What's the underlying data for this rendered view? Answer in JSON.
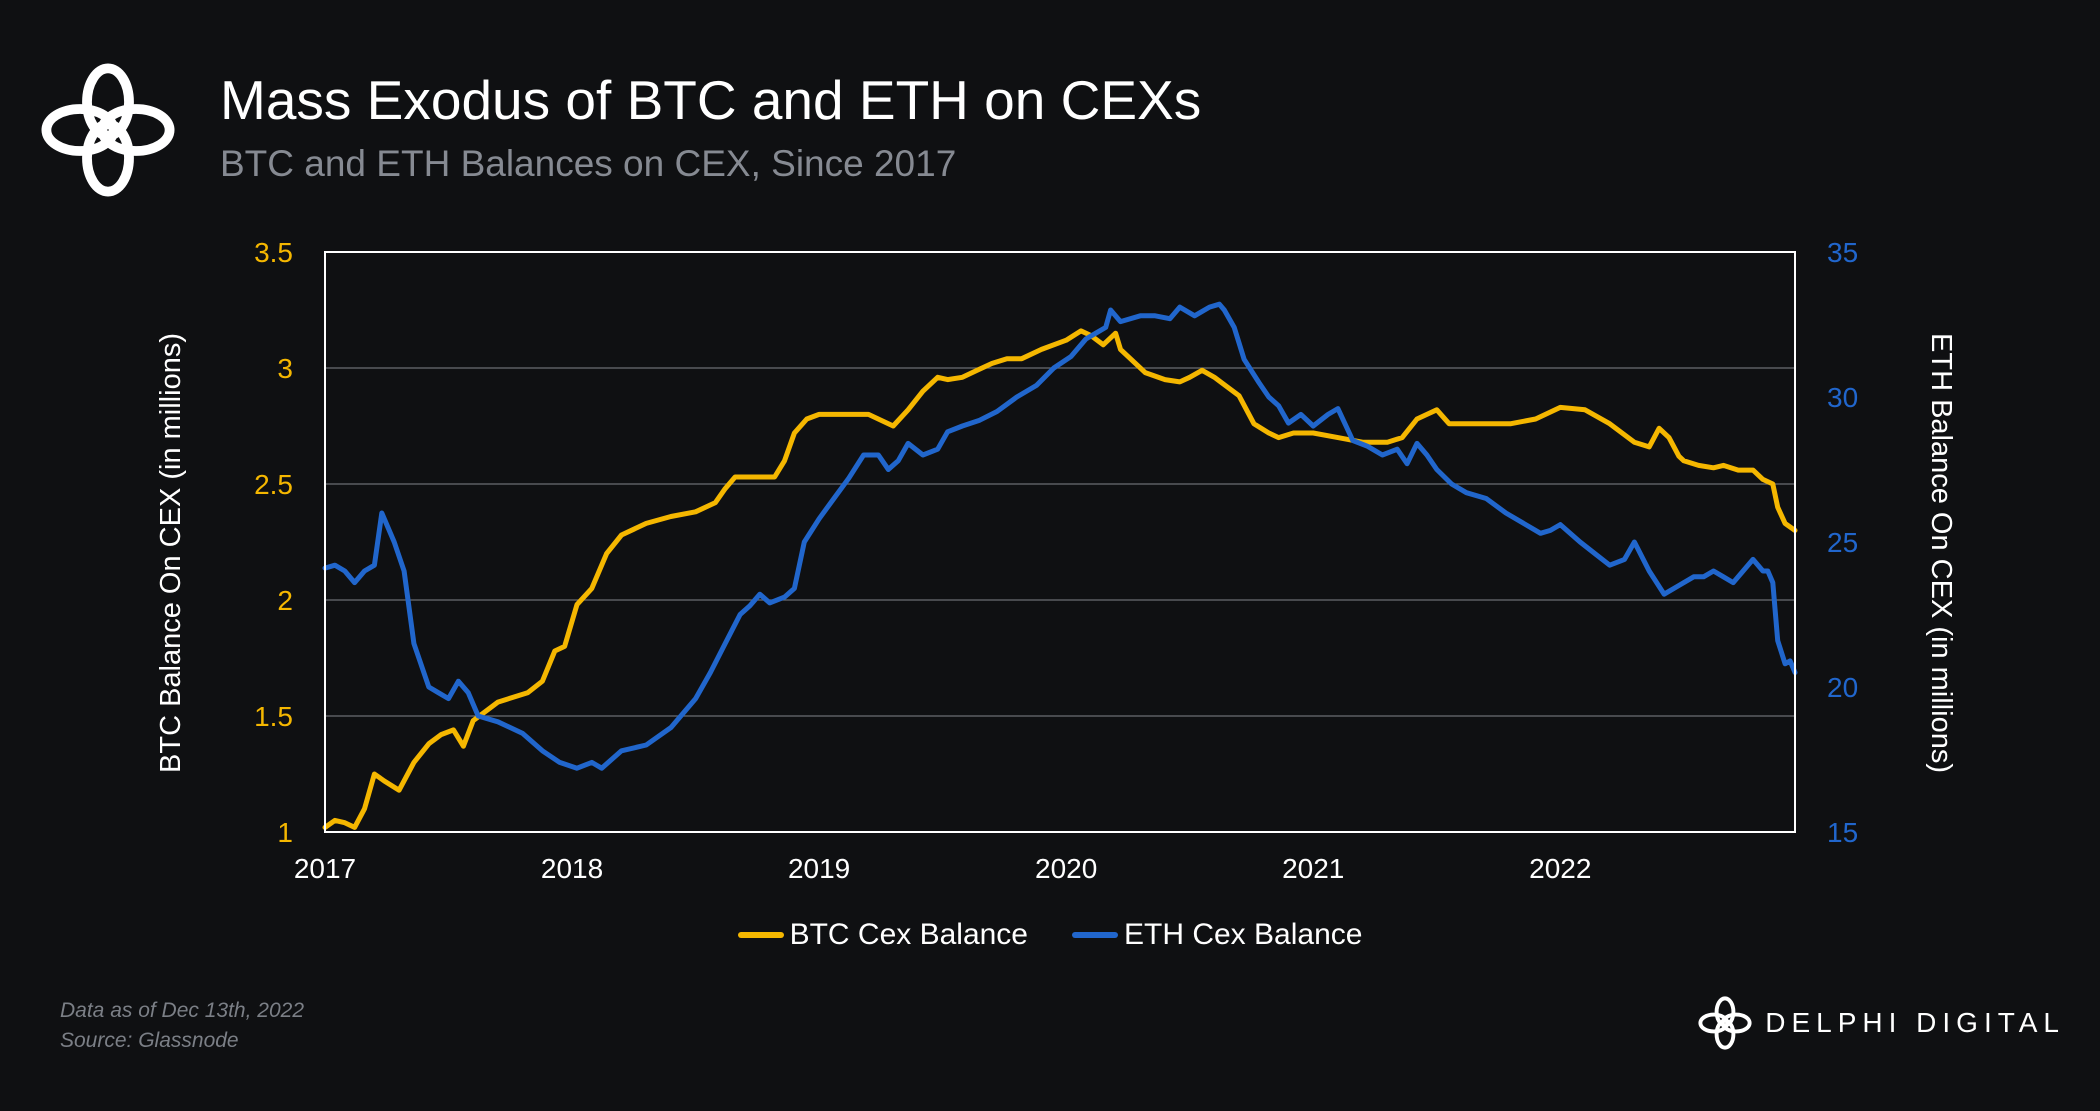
{
  "header": {
    "title": "Mass Exodus of BTC and ETH on CEXs",
    "subtitle": "BTC and ETH Balances on CEX, Since 2017"
  },
  "footer": {
    "data_note": "Data as of Dec 13th, 2022",
    "source": "Source: Glassnode",
    "brand": "DELPHI DIGITAL"
  },
  "colors": {
    "background": "#0f1012",
    "btc": "#f5b700",
    "eth": "#2166cc",
    "grid": "#6a6d72",
    "frame": "#ffffff"
  },
  "icons": {
    "header_logo": "delphi-knot-logo-icon",
    "brand_logo": "delphi-knot-logo-icon"
  },
  "chart_data": {
    "type": "line",
    "title": "Mass Exodus of BTC and ETH on CEXs",
    "subtitle": "BTC and ETH Balances on CEX, Since 2017",
    "xlabel": "",
    "ylabel": "BTC Balance On CEX (in millions)",
    "y2label": "ETH Balance On CEX (in millions)",
    "xlim": [
      2017.0,
      2022.95
    ],
    "ylim": [
      1,
      3.5
    ],
    "y2lim": [
      15,
      35
    ],
    "x_ticks": [
      2017,
      2018,
      2019,
      2020,
      2021,
      2022
    ],
    "x_tick_labels": [
      "2017",
      "2018",
      "2019",
      "2020",
      "2021",
      "2022"
    ],
    "y_ticks": [
      1,
      1.5,
      2,
      2.5,
      3,
      3.5
    ],
    "y_tick_labels": [
      "1",
      "1.5",
      "2",
      "2.5",
      "3",
      "3.5"
    ],
    "y2_ticks": [
      15,
      20,
      25,
      30,
      35
    ],
    "y2_tick_labels": [
      "15",
      "20",
      "25",
      "30",
      "35"
    ],
    "grid": "horizontal",
    "legend_position": "bottom-center",
    "series": [
      {
        "name": "BTC Cex Balance",
        "axis": "left",
        "color": "#f5b700",
        "x": [
          2017.0,
          2017.04,
          2017.08,
          2017.12,
          2017.16,
          2017.2,
          2017.24,
          2017.3,
          2017.36,
          2017.42,
          2017.47,
          2017.52,
          2017.56,
          2017.6,
          2017.65,
          2017.7,
          2017.76,
          2017.82,
          2017.88,
          2017.93,
          2017.97,
          2018.02,
          2018.08,
          2018.14,
          2018.2,
          2018.3,
          2018.4,
          2018.5,
          2018.58,
          2018.62,
          2018.66,
          2018.7,
          2018.76,
          2018.82,
          2018.86,
          2018.9,
          2018.95,
          2019.0,
          2019.1,
          2019.2,
          2019.3,
          2019.36,
          2019.42,
          2019.48,
          2019.52,
          2019.58,
          2019.64,
          2019.7,
          2019.76,
          2019.82,
          2019.9,
          2020.0,
          2020.06,
          2020.1,
          2020.15,
          2020.2,
          2020.22,
          2020.26,
          2020.32,
          2020.4,
          2020.46,
          2020.5,
          2020.55,
          2020.6,
          2020.7,
          2020.76,
          2020.82,
          2020.86,
          2020.92,
          2021.0,
          2021.1,
          2021.2,
          2021.3,
          2021.36,
          2021.42,
          2021.46,
          2021.5,
          2021.55,
          2021.6,
          2021.7,
          2021.8,
          2021.9,
          2022.0,
          2022.1,
          2022.2,
          2022.3,
          2022.36,
          2022.4,
          2022.44,
          2022.48,
          2022.5,
          2022.56,
          2022.62,
          2022.66,
          2022.72,
          2022.78,
          2022.82,
          2022.86,
          2022.88,
          2022.91,
          2022.95
        ],
        "values": [
          1.02,
          1.05,
          1.04,
          1.02,
          1.1,
          1.25,
          1.22,
          1.18,
          1.3,
          1.38,
          1.42,
          1.44,
          1.37,
          1.48,
          1.52,
          1.56,
          1.58,
          1.6,
          1.65,
          1.78,
          1.8,
          1.98,
          2.05,
          2.2,
          2.28,
          2.33,
          2.36,
          2.38,
          2.42,
          2.48,
          2.53,
          2.53,
          2.53,
          2.53,
          2.6,
          2.72,
          2.78,
          2.8,
          2.8,
          2.8,
          2.75,
          2.82,
          2.9,
          2.96,
          2.95,
          2.96,
          2.99,
          3.02,
          3.04,
          3.04,
          3.08,
          3.12,
          3.16,
          3.14,
          3.1,
          3.15,
          3.08,
          3.04,
          2.98,
          2.95,
          2.94,
          2.96,
          2.99,
          2.96,
          2.88,
          2.76,
          2.72,
          2.7,
          2.72,
          2.72,
          2.7,
          2.68,
          2.68,
          2.7,
          2.78,
          2.8,
          2.82,
          2.76,
          2.76,
          2.76,
          2.76,
          2.78,
          2.83,
          2.82,
          2.76,
          2.68,
          2.66,
          2.74,
          2.7,
          2.62,
          2.6,
          2.58,
          2.57,
          2.58,
          2.56,
          2.56,
          2.52,
          2.5,
          2.4,
          2.33,
          2.3
        ]
      },
      {
        "name": "ETH Cex Balance",
        "axis": "right",
        "color": "#2166cc",
        "x": [
          2017.0,
          2017.04,
          2017.08,
          2017.12,
          2017.16,
          2017.2,
          2017.23,
          2017.28,
          2017.32,
          2017.36,
          2017.42,
          2017.46,
          2017.5,
          2017.54,
          2017.58,
          2017.62,
          2017.7,
          2017.8,
          2017.88,
          2017.95,
          2018.02,
          2018.08,
          2018.12,
          2018.2,
          2018.3,
          2018.4,
          2018.5,
          2018.56,
          2018.62,
          2018.68,
          2018.72,
          2018.76,
          2018.8,
          2018.86,
          2018.9,
          2018.94,
          2019.0,
          2019.06,
          2019.12,
          2019.18,
          2019.24,
          2019.28,
          2019.32,
          2019.36,
          2019.42,
          2019.48,
          2019.52,
          2019.58,
          2019.65,
          2019.72,
          2019.8,
          2019.88,
          2019.95,
          2020.02,
          2020.08,
          2020.12,
          2020.16,
          2020.18,
          2020.22,
          2020.3,
          2020.36,
          2020.42,
          2020.46,
          2020.52,
          2020.58,
          2020.62,
          2020.64,
          2020.68,
          2020.72,
          2020.78,
          2020.82,
          2020.86,
          2020.9,
          2020.95,
          2021.0,
          2021.06,
          2021.1,
          2021.16,
          2021.22,
          2021.28,
          2021.34,
          2021.38,
          2021.42,
          2021.46,
          2021.5,
          2021.56,
          2021.62,
          2021.7,
          2021.78,
          2021.86,
          2021.92,
          2021.96,
          2022.0,
          2022.08,
          2022.14,
          2022.2,
          2022.26,
          2022.3,
          2022.36,
          2022.42,
          2022.48,
          2022.54,
          2022.58,
          2022.62,
          2022.66,
          2022.7,
          2022.74,
          2022.78,
          2022.82,
          2022.84,
          2022.86,
          2022.88,
          2022.91,
          2022.93,
          2022.95
        ],
        "values": [
          24.1,
          24.2,
          24.0,
          23.6,
          24.0,
          24.2,
          26.0,
          25.0,
          24.0,
          21.5,
          20.0,
          19.8,
          19.6,
          20.2,
          19.8,
          19.0,
          18.8,
          18.4,
          17.8,
          17.4,
          17.2,
          17.4,
          17.2,
          17.8,
          18.0,
          18.6,
          19.6,
          20.5,
          21.5,
          22.5,
          22.8,
          23.2,
          22.9,
          23.1,
          23.4,
          25.0,
          25.8,
          26.5,
          27.2,
          28.0,
          28.0,
          27.5,
          27.8,
          28.4,
          28.0,
          28.2,
          28.8,
          29.0,
          29.2,
          29.5,
          30.0,
          30.4,
          31.0,
          31.4,
          32.0,
          32.2,
          32.4,
          33.0,
          32.6,
          32.8,
          32.8,
          32.7,
          33.1,
          32.8,
          33.1,
          33.2,
          33.0,
          32.4,
          31.3,
          30.5,
          30.0,
          29.7,
          29.1,
          29.4,
          29.0,
          29.4,
          29.6,
          28.5,
          28.3,
          28.0,
          28.2,
          27.7,
          28.4,
          28.0,
          27.5,
          27.0,
          26.7,
          26.5,
          26.0,
          25.6,
          25.3,
          25.4,
          25.6,
          25.0,
          24.6,
          24.2,
          24.4,
          25.0,
          24.0,
          23.2,
          23.5,
          23.8,
          23.8,
          24.0,
          23.8,
          23.6,
          24.0,
          24.4,
          24.0,
          24.0,
          23.6,
          21.6,
          20.8,
          20.9,
          20.5
        ]
      }
    ]
  }
}
